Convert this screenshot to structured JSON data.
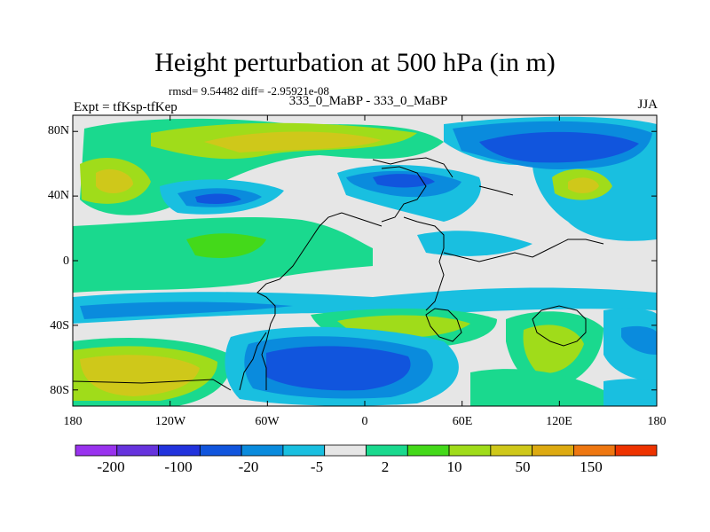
{
  "title": "Height perturbation at 500 hPa (in m)",
  "stats_line": "rmsd= 9.54482 diff= -2.95921e-08",
  "experiment_label": "Expt = tfKsp-tfKep",
  "center_label": "333_0_MaBP - 333_0_MaBP",
  "season_label": "JJA",
  "chart_data": {
    "type": "heatmap",
    "title": "Height perturbation at 500 hPa (in m)",
    "x_axis": {
      "range": [
        -180,
        180
      ],
      "ticks": [
        "180",
        "120W",
        "60W",
        "0",
        "60E",
        "120E",
        "180"
      ],
      "tick_values": [
        -180,
        -120,
        -60,
        0,
        60,
        120,
        180
      ]
    },
    "y_axis": {
      "range": [
        -90,
        90
      ],
      "ticks": [
        "80S",
        "40S",
        "0",
        "40N",
        "80N"
      ],
      "tick_values": [
        -80,
        -40,
        0,
        40,
        80
      ]
    },
    "colorbar": {
      "tick_labels": [
        "-200",
        "-100",
        "-20",
        "-5",
        "2",
        "10",
        "50",
        "150"
      ],
      "colors": [
        "#9933ee",
        "#6633dd",
        "#2233dd",
        "#1155dd",
        "#0a8bdd",
        "#19bfe0",
        "#e6e6e6",
        "#1ad98e",
        "#44d91a",
        "#a0dc1a",
        "#cfc81a",
        "#ddaa11",
        "#ee7711",
        "#ee3300"
      ]
    },
    "field_features": [
      {
        "region": "North Pacific / western",
        "lon": -150,
        "lat": 55,
        "sign": "positive",
        "approx_value": 50
      },
      {
        "region": "Arctic north band",
        "lon": -75,
        "lat": 78,
        "sign": "positive",
        "approx_value": 50
      },
      {
        "region": "North Pacific east",
        "lon": 140,
        "lat": 75,
        "sign": "negative",
        "approx_value": -20
      },
      {
        "region": "Central Asia",
        "lon": 128,
        "lat": 50,
        "sign": "positive",
        "approx_value": 50
      },
      {
        "region": "Europe",
        "lon": 10,
        "lat": 50,
        "sign": "negative",
        "approx_value": -20
      },
      {
        "region": "Southern Ocean Pacific",
        "lon": -150,
        "lat": -70,
        "sign": "positive",
        "approx_value": 50
      },
      {
        "region": "Southern Ocean Atlantic",
        "lon": -30,
        "lat": -75,
        "sign": "negative",
        "approx_value": -100
      },
      {
        "region": "Southern Indian Ocean",
        "lon": 120,
        "lat": -50,
        "sign": "positive",
        "approx_value": 10
      },
      {
        "region": "Southeast Pacific",
        "lon": 160,
        "lat": -55,
        "sign": "negative",
        "approx_value": -20
      }
    ]
  }
}
